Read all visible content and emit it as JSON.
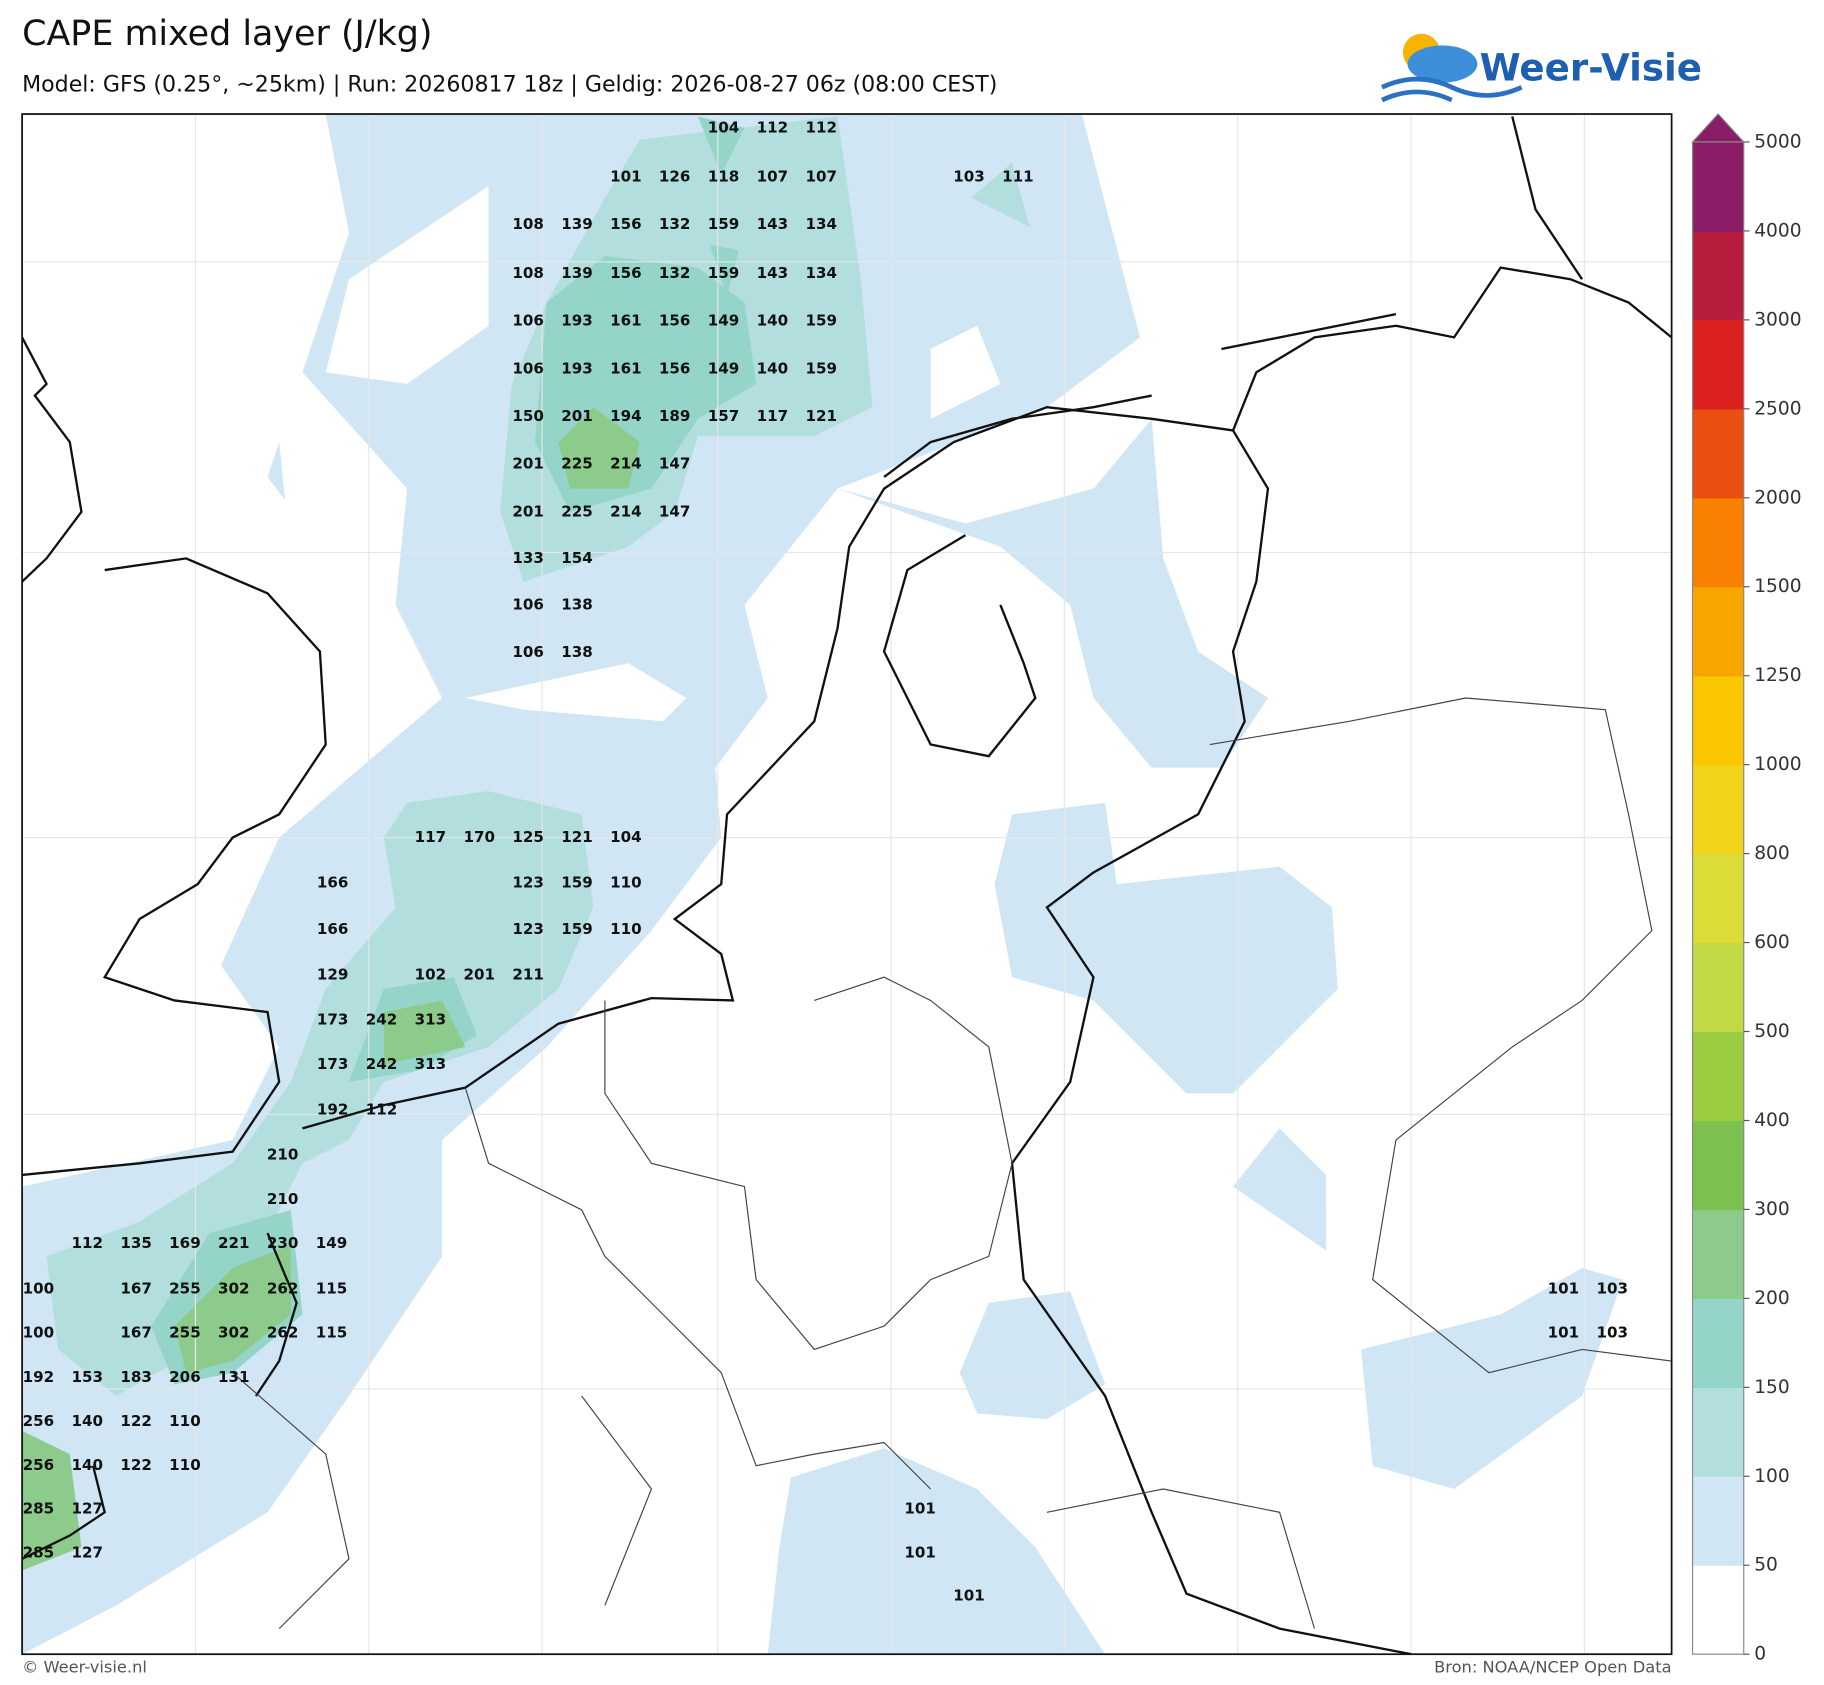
{
  "header": {
    "title": "CAPE mixed layer (J/kg)",
    "subtitle": "Model: GFS (0.25°, ~25km)  |  Run: 20260817 18z  |  Geldig: 2026-08-27 06z (08:00 CEST)",
    "logo": "Weer-Visie"
  },
  "map_labels": [
    [
      104,
      112,
      112
    ],
    [
      101,
      126,
      118,
      107,
      107
    ],
    [
      103,
      111
    ],
    [
      108,
      139,
      156,
      132,
      159,
      143,
      134
    ],
    [
      108,
      139,
      156,
      132,
      159,
      143,
      134
    ],
    [
      106,
      193,
      161,
      156,
      149,
      140,
      159
    ],
    [
      106,
      193,
      161,
      156,
      149,
      140,
      159
    ],
    [
      150,
      201,
      194,
      189,
      157,
      117,
      121
    ],
    [
      201,
      225,
      214,
      147
    ],
    [
      201,
      225,
      214,
      147
    ],
    [
      133,
      154
    ],
    [
      106,
      138
    ],
    [
      106,
      138
    ],
    [
      117,
      170,
      125,
      121,
      104
    ],
    [
      166
    ],
    [
      123,
      159,
      110
    ],
    [
      166
    ],
    [
      123,
      159,
      110
    ],
    [
      129
    ],
    [
      102,
      201,
      211
    ],
    [
      173,
      242,
      313
    ],
    [
      173,
      242,
      313
    ],
    [
      192,
      112
    ],
    [
      210
    ],
    [
      210
    ],
    [
      112,
      135,
      169,
      221,
      230,
      149
    ],
    [
      100
    ],
    [
      167,
      255,
      302,
      262,
      115
    ],
    [
      100
    ],
    [
      167,
      255,
      302,
      262,
      115
    ],
    [
      192,
      153,
      183,
      206,
      131
    ],
    [
      256,
      140,
      122,
      110
    ],
    [
      256,
      140,
      122,
      110
    ],
    [
      285,
      127
    ],
    [
      101
    ],
    [
      285,
      127
    ],
    [
      101
    ],
    [
      101
    ],
    [
      101,
      103
    ],
    [
      101,
      103
    ]
  ],
  "colorbar": {
    "ticks": [
      0,
      50,
      100,
      150,
      200,
      300,
      400,
      500,
      600,
      800,
      1000,
      1250,
      1500,
      2000,
      2500,
      3000,
      4000,
      5000
    ],
    "colors": [
      "#ffffff",
      "#d0e6f5",
      "#b2dede",
      "#95d4c8",
      "#8ccb8c",
      "#7cc150",
      "#9bcc3f",
      "#c2d944",
      "#dcdc38",
      "#f1d31c",
      "#f9c600",
      "#f9a500",
      "#f98000",
      "#ea4f12",
      "#db2020",
      "#b71d3c",
      "#8b1c68"
    ],
    "extend_color": "#8b1c68"
  },
  "footer": {
    "left": "© Weer-visie.nl",
    "right": "Bron: NOAA/NCEP Open Data"
  }
}
